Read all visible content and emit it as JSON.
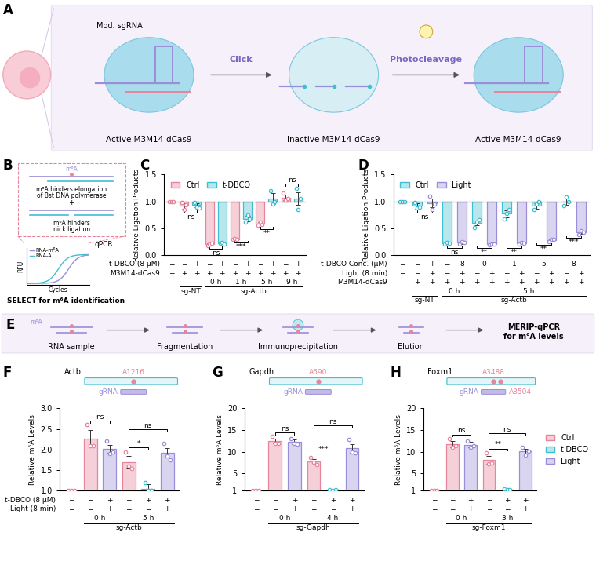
{
  "panels": {
    "A": {
      "label": "A",
      "sgrna": "Mod. sgRNA",
      "click": "Click",
      "photo": "Photocleavage",
      "stages": [
        "Active M3M14-dCas9",
        "Inactive M3M14-dCas9",
        "Active M3M14-dCas9"
      ]
    },
    "B": {
      "label": "B",
      "m6a": "m⁶A",
      "line1": [
        "m⁶A hinders elongation",
        "of Bst DNA polymerase"
      ],
      "plus": "+",
      "line2": [
        "m⁶A hinders",
        "nick ligation"
      ],
      "ylabel": "RFU",
      "xlabel": "Cycles",
      "curves": [
        "RNA-m⁶A",
        "RNA-A"
      ],
      "method": "qPCR",
      "caption": "SELECT for m⁶A identification"
    },
    "E": {
      "label": "E",
      "m6a": "m⁶A",
      "steps": [
        "RNA sample",
        "Fragmentation",
        "Immunoprecipitation",
        "Elution"
      ],
      "result": [
        "MERIP-qPCR",
        "for m⁶A levels"
      ]
    }
  },
  "chart_data": [
    {
      "type": "bar",
      "panel": "C",
      "ylabel": "Relative Ligation Products",
      "ylim": [
        0,
        1.5
      ],
      "yticks": [
        {
          "value": 0,
          "label": "0.0"
        },
        {
          "value": 0.5,
          "label": "0.5"
        },
        {
          "value": 1,
          "label": "1.0"
        },
        {
          "value": 1.5,
          "label": "1.5"
        }
      ],
      "baseline": 1,
      "values": [
        1.0,
        0.92,
        0.93,
        0.2,
        0.22,
        0.3,
        0.68,
        0.58,
        1.05,
        1.07,
        1.05
      ],
      "errors": [
        0.0,
        0.05,
        0.04,
        0.02,
        0.01,
        0.01,
        0.05,
        0.03,
        0.1,
        0.05,
        0.12
      ],
      "points": [
        [
          1.0,
          1.0,
          1.0
        ],
        [
          0.98,
          0.85,
          0.93
        ],
        [
          0.98,
          0.9,
          0.88
        ],
        [
          0.18,
          0.2,
          0.22
        ],
        [
          0.22,
          0.23,
          0.21
        ],
        [
          0.3,
          0.31,
          0.29
        ],
        [
          0.62,
          0.75,
          0.67
        ],
        [
          0.55,
          0.62,
          0.57
        ],
        [
          1.2,
          0.95,
          1.0
        ],
        [
          1.15,
          1.02,
          1.05
        ],
        [
          1.25,
          0.85,
          1.05
        ]
      ],
      "colors": [
        "#e8849b",
        "#e8849b",
        "#41bfd0",
        "#e8849b",
        "#41bfd0",
        "#e8849b",
        "#41bfd0",
        "#e8849b",
        "#41bfd0",
        "#e8849b",
        "#41bfd0"
      ],
      "legend_entries": [
        {
          "name": "Ctrl",
          "color": "#e8849b"
        },
        {
          "name": "t-DBCO",
          "color": "#41bfd0"
        }
      ],
      "legend": "upper left",
      "significance": [
        {
          "bars": [
            1,
            2
          ],
          "label": "ns"
        },
        {
          "bars": [
            3,
            4
          ],
          "label": "ns"
        },
        {
          "bars": [
            5,
            6
          ],
          "label": "***"
        },
        {
          "bars": [
            7,
            8
          ],
          "label": "**"
        },
        {
          "bars": [
            9,
            10
          ],
          "label": "ns"
        }
      ],
      "rows": [
        {
          "label": "t-DBCO (8 μM)",
          "marks": [
            "−",
            "−",
            "+",
            "−",
            "+",
            "−",
            "+",
            "−",
            "+",
            "−",
            "+"
          ]
        },
        {
          "label": "M3M14-dCas9",
          "marks": [
            "−",
            "+",
            "+",
            "+",
            "+",
            "+",
            "+",
            "+",
            "+",
            "+",
            "+"
          ]
        }
      ],
      "times": [
        null,
        null,
        null,
        "0 h",
        null,
        "1 h",
        null,
        "5 h",
        null,
        "9 h",
        null
      ],
      "groups": [
        null,
        "sg-NT",
        null,
        "sg-Actb",
        null,
        null,
        null,
        null,
        null,
        null,
        null
      ]
    },
    {
      "type": "bar",
      "panel": "D",
      "ylabel": "Relative Ligation Products",
      "ylim": [
        0,
        1.5
      ],
      "yticks": [
        {
          "value": 0,
          "label": "0.0"
        },
        {
          "value": 0.5,
          "label": "0.5"
        },
        {
          "value": 1,
          "label": "1.0"
        },
        {
          "value": 1.5,
          "label": "1.5"
        }
      ],
      "baseline": 1,
      "values": [
        1.0,
        0.92,
        0.97,
        0.22,
        0.23,
        0.6,
        0.2,
        0.77,
        0.22,
        0.92,
        0.28,
        1.0,
        0.42
      ],
      "errors": [
        0.0,
        0.05,
        0.08,
        0.01,
        0.02,
        0.05,
        0.01,
        0.06,
        0.01,
        0.05,
        0.02,
        0.06,
        0.03
      ],
      "points": [
        [
          1.0,
          1.0,
          1.0
        ],
        [
          0.98,
          0.88,
          0.9
        ],
        [
          1.1,
          0.85,
          0.95
        ],
        [
          0.21,
          0.23,
          0.22
        ],
        [
          0.2,
          0.25,
          0.24
        ],
        [
          0.52,
          0.62,
          0.66
        ],
        [
          0.19,
          0.21,
          0.2
        ],
        [
          0.68,
          0.78,
          0.85
        ],
        [
          0.2,
          0.23,
          0.22
        ],
        [
          0.85,
          0.95,
          1.0
        ],
        [
          0.25,
          0.3,
          0.29
        ],
        [
          0.92,
          1.08,
          1.0
        ],
        [
          0.38,
          0.45,
          0.43
        ]
      ],
      "colors": [
        "#41bfd0",
        "#41bfd0",
        "#9a8ed8",
        "#41bfd0",
        "#9a8ed8",
        "#41bfd0",
        "#9a8ed8",
        "#41bfd0",
        "#9a8ed8",
        "#41bfd0",
        "#9a8ed8",
        "#41bfd0",
        "#9a8ed8"
      ],
      "legend_entries": [
        {
          "name": "Ctrl",
          "color": "#41bfd0"
        },
        {
          "name": "Light",
          "color": "#9a8ed8"
        }
      ],
      "legend": "upper left",
      "significance": [
        {
          "bars": [
            1,
            2
          ],
          "label": "ns"
        },
        {
          "bars": [
            3,
            4
          ],
          "label": "ns"
        },
        {
          "bars": [
            5,
            6
          ],
          "label": "**"
        },
        {
          "bars": [
            7,
            8
          ],
          "label": "**"
        },
        {
          "bars": [
            9,
            10
          ],
          "label": "**"
        },
        {
          "bars": [
            11,
            12
          ],
          "label": "***"
        }
      ],
      "rows": [
        {
          "label": "t-DBCO Conc. (μM)",
          "marks": [
            "−",
            "−",
            "+",
            "−",
            "8",
            "0",
            null,
            "1",
            null,
            "5",
            null,
            "8",
            null
          ]
        },
        {
          "label": "Light (8 min)",
          "marks": [
            "−",
            "−",
            "+",
            "−",
            "+",
            "−",
            "+",
            "−",
            "+",
            "−",
            "+",
            "−",
            "+"
          ]
        },
        {
          "label": "M3M14-dCas9",
          "marks": [
            "−",
            "+",
            "+",
            "+",
            "+",
            "+",
            "+",
            "+",
            "+",
            "+",
            "+",
            "+",
            "+"
          ]
        }
      ],
      "times": [
        null,
        null,
        null,
        "0 h",
        null,
        "5 h",
        null,
        null,
        null,
        null,
        null,
        null,
        null
      ],
      "groups": [
        null,
        "sg-NT",
        null,
        "sg-Actb",
        null,
        null,
        null,
        null,
        null,
        null,
        null,
        null,
        null
      ]
    },
    {
      "type": "bar",
      "panel": "F",
      "ylabel": "Relative m⁶A Levels",
      "ylim": [
        1,
        3
      ],
      "yticks": [
        {
          "value": 1,
          "label": "1.0"
        },
        {
          "value": 1.5,
          "label": "1.5"
        },
        {
          "value": 2,
          "label": "2.0"
        },
        {
          "value": 2.5,
          "label": "2.5"
        },
        {
          "value": 3,
          "label": "3.0"
        }
      ],
      "baseline": 1,
      "values": [
        1.0,
        2.27,
        2.02,
        1.7,
        1.05,
        1.92
      ],
      "errors": [
        0.0,
        0.2,
        0.1,
        0.15,
        0.1,
        0.12
      ],
      "points": [
        [
          1.0,
          1.0,
          1.0
        ],
        [
          2.6,
          2.1,
          2.1
        ],
        [
          2.2,
          1.9,
          1.95
        ],
        [
          1.95,
          1.6,
          1.55
        ],
        [
          1.2,
          1.0,
          1.0
        ],
        [
          2.15,
          1.85,
          1.75
        ]
      ],
      "colors": [
        "#e8849b",
        "#e8849b",
        "#9a8ed8",
        "#e8849b",
        "#41bfd0",
        "#9a8ed8"
      ],
      "significance": [
        {
          "bars": [
            1,
            2
          ],
          "label": "ns"
        },
        {
          "bars": [
            3,
            4
          ],
          "label": "*"
        },
        {
          "bars": [
            3,
            5
          ],
          "label": "ns"
        }
      ],
      "rows": [
        {
          "label": "t-DBCO (8 μM)",
          "marks": [
            "−",
            "−",
            "+",
            "−",
            "+",
            "+"
          ]
        },
        {
          "label": "Light (8 min)",
          "marks": [
            "−",
            "−",
            "+",
            "−",
            "−",
            "+"
          ]
        }
      ],
      "times": [
        null,
        "0 h",
        null,
        "5 h",
        null,
        null
      ],
      "groups": [
        null,
        "sg-Actb",
        null,
        null,
        null,
        null
      ],
      "gene": {
        "name": "Actb",
        "sites": [
          "A1216"
        ],
        "guide": "gRNA"
      }
    },
    {
      "type": "bar",
      "panel": "G",
      "ylabel": "Relative m⁶A Levels",
      "ylim": [
        1,
        20
      ],
      "yticks": [
        1,
        5,
        10,
        15,
        20
      ],
      "baseline": 1,
      "values": [
        1.0,
        12.5,
        12.3,
        7.7,
        1.2,
        10.8
      ],
      "errors": [
        0.0,
        0.6,
        0.5,
        0.6,
        0.1,
        1.0
      ],
      "points": [
        [
          1.0,
          1.0,
          1.0
        ],
        [
          13.5,
          12.0,
          12.0
        ],
        [
          13.0,
          12.0,
          11.8
        ],
        [
          8.7,
          7.5,
          7.0
        ],
        [
          1.3,
          1.1,
          1.2
        ],
        [
          12.8,
          10.0,
          9.7
        ]
      ],
      "colors": [
        "#e8849b",
        "#e8849b",
        "#9a8ed8",
        "#e8849b",
        "#41bfd0",
        "#9a8ed8"
      ],
      "significance": [
        {
          "bars": [
            1,
            2
          ],
          "label": "ns"
        },
        {
          "bars": [
            3,
            4
          ],
          "label": "***"
        },
        {
          "bars": [
            3,
            5
          ],
          "label": "ns"
        }
      ],
      "rows": [
        {
          "marks": [
            "−",
            "−",
            "+",
            "−",
            "+",
            "+"
          ]
        },
        {
          "marks": [
            "−",
            "−",
            "+",
            "−",
            "−",
            "+"
          ]
        }
      ],
      "times": [
        null,
        "0 h",
        null,
        "4 h",
        null,
        null
      ],
      "groups": [
        null,
        "sg-Gapdh",
        null,
        null,
        null,
        null
      ],
      "gene": {
        "name": "Gapdh",
        "sites": [
          "A690"
        ],
        "guide": "gRNA"
      }
    },
    {
      "type": "bar",
      "panel": "H",
      "ylabel": "Relative m⁶A Levels",
      "ylim": [
        1,
        20
      ],
      "yticks": [
        1,
        5,
        10,
        15,
        20
      ],
      "baseline": 1,
      "values": [
        1.0,
        11.8,
        11.6,
        8.1,
        1.3,
        10.1
      ],
      "errors": [
        0.0,
        0.7,
        0.6,
        0.9,
        0.1,
        0.6
      ],
      "points": [
        [
          1.0,
          1.0,
          1.0
        ],
        [
          13.0,
          11.0,
          11.4
        ],
        [
          12.5,
          11.0,
          11.3
        ],
        [
          9.8,
          7.2,
          7.4
        ],
        [
          1.4,
          1.2,
          1.3
        ],
        [
          11.0,
          9.2,
          10.1
        ]
      ],
      "colors": [
        "#e8849b",
        "#e8849b",
        "#9a8ed8",
        "#e8849b",
        "#41bfd0",
        "#9a8ed8"
      ],
      "legend_entries": [
        {
          "name": "Ctrl",
          "color": "#e8849b"
        },
        {
          "name": "t-DBCO",
          "color": "#41bfd0"
        },
        {
          "name": "Light",
          "color": "#9a8ed8"
        }
      ],
      "legend": "center left",
      "significance": [
        {
          "bars": [
            1,
            2
          ],
          "label": "ns"
        },
        {
          "bars": [
            3,
            4
          ],
          "label": "**"
        },
        {
          "bars": [
            3,
            5
          ],
          "label": "ns"
        }
      ],
      "rows": [
        {
          "marks": [
            "−",
            "−",
            "+",
            "−",
            "+",
            "+"
          ]
        },
        {
          "marks": [
            "−",
            "−",
            "+",
            "−",
            "−",
            "+"
          ]
        }
      ],
      "times": [
        null,
        "0 h",
        null,
        "3 h",
        null,
        null
      ],
      "groups": [
        null,
        "sg-Foxm1",
        null,
        null,
        null,
        null
      ],
      "gene": {
        "name": "Foxm1",
        "sites": [
          "A3488",
          "A3504"
        ],
        "guide": "gRNA"
      }
    }
  ]
}
